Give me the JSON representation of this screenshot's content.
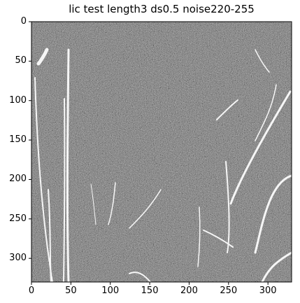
{
  "figure": {
    "title": "lic test length3 ds0.5 noise220-255",
    "colormap": "gray",
    "x_ticks": [
      "0",
      "50",
      "100",
      "150",
      "200",
      "250",
      "300"
    ],
    "y_ticks": [
      "0",
      "50",
      "100",
      "150",
      "200",
      "250",
      "300"
    ],
    "xlim": [
      0,
      330
    ],
    "ylim": [
      330,
      0
    ]
  }
}
